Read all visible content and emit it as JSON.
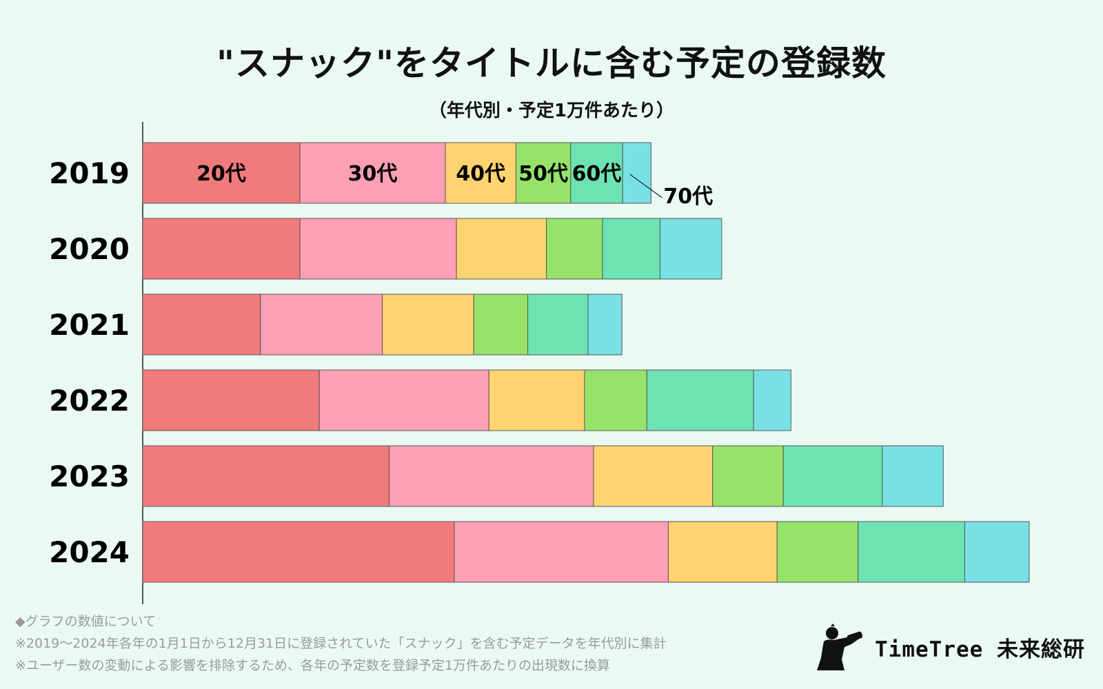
{
  "chart_data": {
    "type": "bar",
    "orientation": "horizontal",
    "stacked": true,
    "title": "\"スナック\"をタイトルに含む予定の登録数",
    "subtitle": "（年代別・予定1万件あたり）",
    "categories": [
      "2019",
      "2020",
      "2021",
      "2022",
      "2023",
      "2024"
    ],
    "series": [
      {
        "name": "20代",
        "color": "#f17b7b",
        "values": [
          227,
          227,
          170,
          255,
          356,
          450
        ]
      },
      {
        "name": "30代",
        "color": "#ff9fb6",
        "values": [
          210,
          226,
          176,
          245,
          295,
          309
        ]
      },
      {
        "name": "40代",
        "color": "#ffd470",
        "values": [
          102,
          130,
          132,
          138,
          172,
          157
        ]
      },
      {
        "name": "50代",
        "color": "#96e36a",
        "values": [
          79,
          81,
          78,
          90,
          102,
          117
        ]
      },
      {
        "name": "60代",
        "color": "#6de3b3",
        "values": [
          75,
          83,
          87,
          154,
          143,
          154
        ]
      },
      {
        "name": "70代",
        "color": "#78e1e6",
        "values": [
          41,
          89,
          49,
          54,
          88,
          93
        ]
      }
    ],
    "xlim": [
      0,
      1300
    ],
    "annotation_year": "2019",
    "xlabel": "",
    "ylabel": ""
  },
  "notes": [
    "◆グラフの数値について",
    "※2019～2024年各年の1月1日から12月31日に登録されていた「スナック」を含む予定データを年代別に集計",
    "※ユーザー数の変動による影響を排除するため、各年の予定数を登録予定1万件あたりの出現数に換算"
  ],
  "brand": {
    "name": "TimeTree 未来総研",
    "icon": "silhouette-logo-icon"
  }
}
